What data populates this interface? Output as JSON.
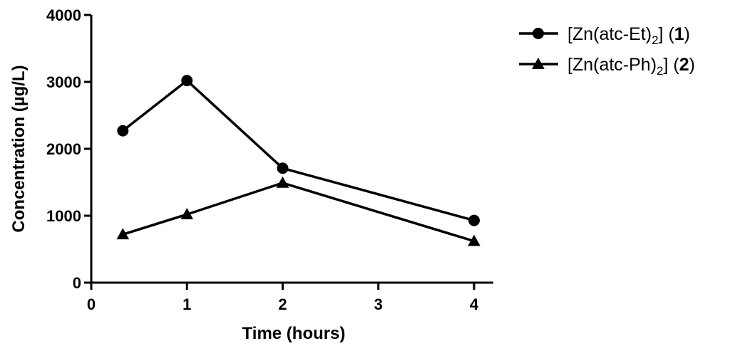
{
  "chart_data": {
    "type": "line",
    "title": "",
    "xlabel": "Time (hours)",
    "ylabel": "Concentration (µg/L)",
    "xlim": [
      0,
      4
    ],
    "ylim": [
      0,
      4000
    ],
    "x_ticks": [
      "0",
      "1",
      "2",
      "3",
      "4"
    ],
    "y_ticks": [
      "0",
      "1000",
      "2000",
      "3000",
      "4000"
    ],
    "grid": false,
    "legend_position": "top-right",
    "series": [
      {
        "name_prefix": "[Zn(atc-Et)",
        "name_subscript": "2",
        "name_suffix": "] (",
        "name_bold": "1",
        "name_close": ")",
        "marker": "circle",
        "color": "#000000",
        "x": [
          0.33,
          1,
          2,
          4
        ],
        "y": [
          2270,
          3020,
          1710,
          930
        ]
      },
      {
        "name_prefix": "[Zn(atc-Ph)",
        "name_subscript": "2",
        "name_suffix": "] (",
        "name_bold": "2",
        "name_close": ")",
        "marker": "triangle",
        "color": "#000000",
        "x": [
          0.33,
          1,
          2,
          4
        ],
        "y": [
          720,
          1020,
          1490,
          620
        ]
      }
    ]
  }
}
